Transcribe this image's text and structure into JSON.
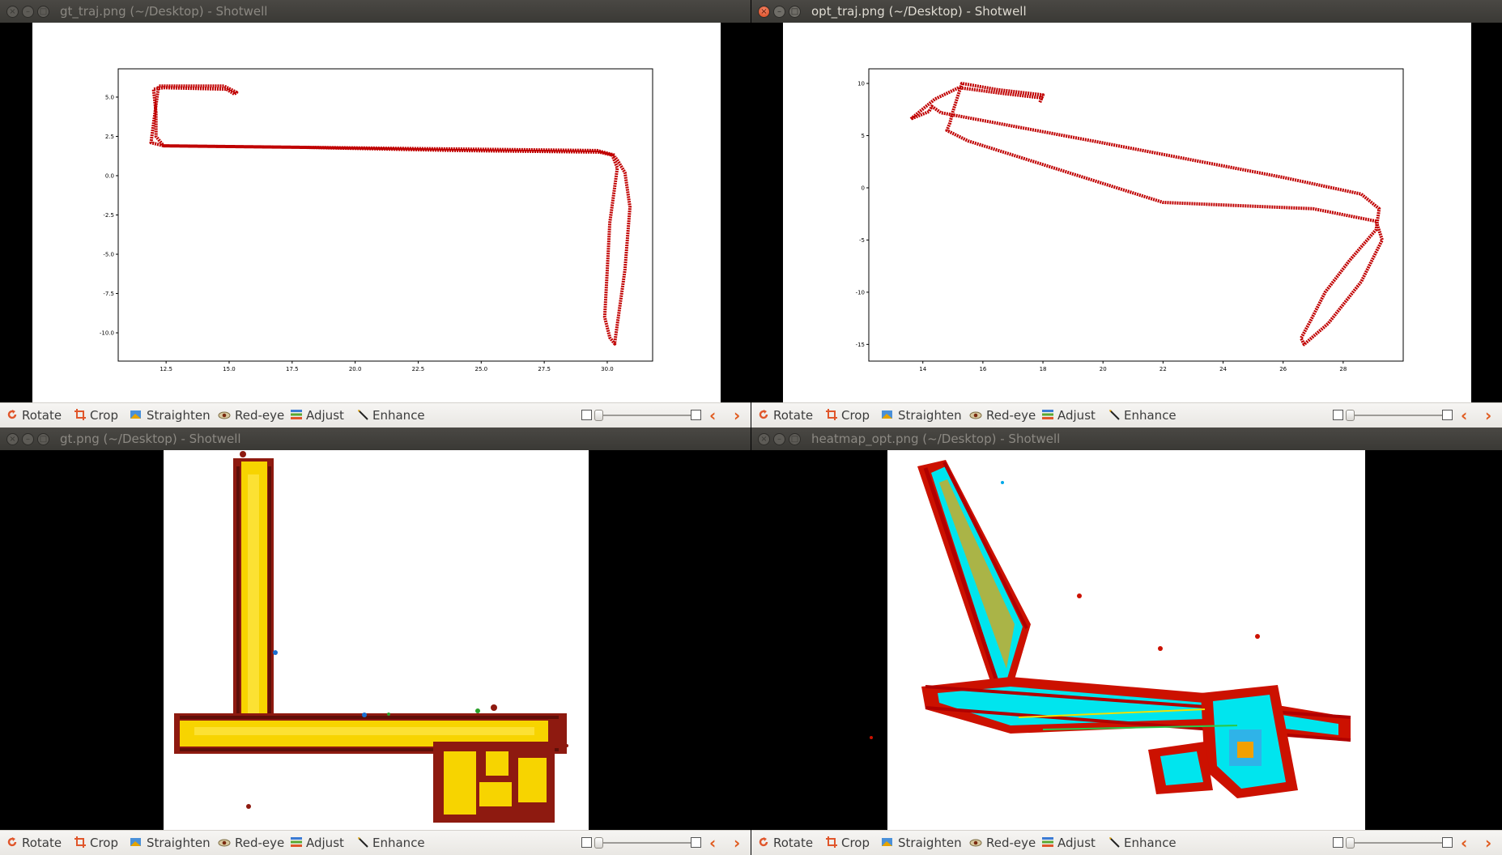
{
  "windows": [
    {
      "title": "gt_traj.png (~/Desktop) - Shotwell",
      "active": false
    },
    {
      "title": "opt_traj.png (~/Desktop) - Shotwell",
      "active": true
    },
    {
      "title": "gt.png (~/Desktop) - Shotwell",
      "active": false
    },
    {
      "title": "heatmap_opt.png (~/Desktop) - Shotwell",
      "active": false
    }
  ],
  "toolbar": {
    "rotate": "Rotate",
    "crop": "Crop",
    "straighten": "Straighten",
    "redeye": "Red-eye",
    "adjust": "Adjust",
    "enhance": "Enhance"
  },
  "icons": {
    "close": "×",
    "minimize": "–",
    "maximize": "□",
    "prev": "‹",
    "next": "›"
  },
  "colors": {
    "trajectory": "#c00000",
    "active_close": "#e0562b"
  },
  "chart_data": [
    {
      "type": "line",
      "xticks": [
        "12.5",
        "15.0",
        "17.5",
        "20.0",
        "22.5",
        "25.0",
        "27.5",
        "30.0"
      ],
      "yticks": [
        "5.0",
        "2.5",
        "0.0",
        "-2.5",
        "-5.0",
        "-7.5",
        "-10.0"
      ],
      "xlim": [
        10.6,
        31.8
      ],
      "ylim": [
        -11.8,
        6.8
      ],
      "series": [
        {
          "x": [
            15.2,
            14.9,
            12.4,
            12.0,
            12.1,
            12.1,
            12.4,
            18,
            24,
            29.7,
            30.2,
            30.4,
            30.1,
            30.0,
            29.9,
            30.1,
            30.3,
            30.3,
            30.7,
            30.9,
            30.7,
            30.4,
            30.3,
            30.3,
            29.6,
            24,
            18,
            12.4,
            11.9,
            12.2,
            14.8,
            15.3,
            15.2
          ],
          "y": [
            5.2,
            5.5,
            5.6,
            5.5,
            4.0,
            2.5,
            1.9,
            1.8,
            1.6,
            1.5,
            1.3,
            0.5,
            -3,
            -6,
            -9,
            -10.3,
            -10.7,
            -10.6,
            -6,
            -2,
            0.2,
            1.0,
            1.2,
            1.3,
            1.6,
            1.7,
            1.8,
            1.9,
            2.1,
            5.7,
            5.7,
            5.3,
            5.2
          ]
        }
      ]
    },
    {
      "type": "line",
      "xticks": [
        "14",
        "16",
        "18",
        "20",
        "22",
        "24",
        "26",
        "28"
      ],
      "yticks": [
        "10",
        "5",
        "0",
        "-5",
        "-10",
        "-15"
      ],
      "xlim": [
        12.2,
        30.0
      ],
      "ylim": [
        -16.6,
        11.4
      ],
      "series": [
        {
          "x": [
            18.0,
            16.5,
            15.2,
            14.4,
            13.6,
            14.2,
            14.3,
            14.6,
            20,
            26,
            28.6,
            29.2,
            29.1,
            28.2,
            27.4,
            26.9,
            26.6,
            26.7,
            27.5,
            28.6,
            29.3,
            29.1,
            27,
            22,
            15.5,
            14.8,
            14.9,
            15.0,
            15.3,
            16.5,
            18.0,
            17.9
          ],
          "y": [
            8.6,
            9.1,
            9.6,
            8.5,
            6.6,
            7.3,
            7.8,
            7.2,
            4.3,
            1.0,
            -0.6,
            -2,
            -4,
            -7,
            -10,
            -12.8,
            -14.4,
            -15.0,
            -13,
            -9,
            -5.0,
            -3.2,
            -2.0,
            -1.4,
            4.5,
            5.5,
            6.2,
            7.3,
            10.0,
            9.4,
            8.9,
            8.2
          ]
        }
      ]
    }
  ]
}
